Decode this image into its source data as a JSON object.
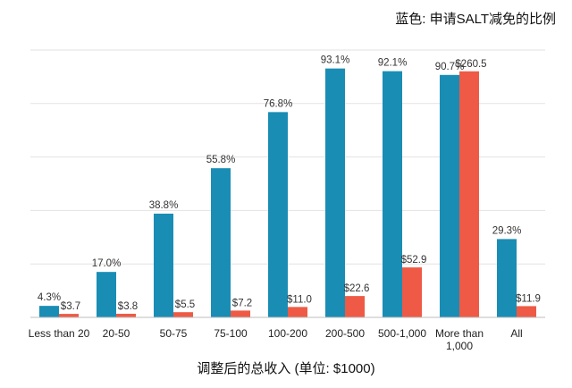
{
  "chart_data": {
    "type": "bar",
    "legend_note": "蓝色: 申请SALT减免的比例",
    "xlabel": "调整后的总收入 (单位: $1000)",
    "ylabel": "",
    "categories": [
      [
        "Less than 20"
      ],
      [
        "20-50"
      ],
      [
        "50-75"
      ],
      [
        "75-100"
      ],
      [
        "100-200"
      ],
      [
        "200-500"
      ],
      [
        "500-1,000"
      ],
      [
        "More than",
        "1,000"
      ],
      [
        "All"
      ]
    ],
    "series": [
      {
        "values": [
          4.3,
          17.0,
          38.8,
          55.8,
          76.8,
          93.1,
          92.1,
          90.7,
          29.3
        ],
        "labels": [
          "4.3%",
          "17.0%",
          "38.8%",
          "55.8%",
          "76.8%",
          "93.1%",
          "92.1%",
          "90.7%",
          "29.3%"
        ],
        "color": "#1a8db5",
        "ymax": 100
      },
      {
        "values": [
          3.7,
          3.8,
          5.5,
          7.2,
          11.0,
          22.6,
          52.9,
          260.5,
          11.9
        ],
        "labels": [
          "$3.7",
          "$3.8",
          "$5.5",
          "$7.2",
          "$11.0",
          "$22.6",
          "$52.9",
          "$260.5",
          "$11.9"
        ],
        "color": "#ee5a45",
        "ymax": 283
      }
    ],
    "grid": true,
    "gridline_color": "#e2e2e2"
  }
}
